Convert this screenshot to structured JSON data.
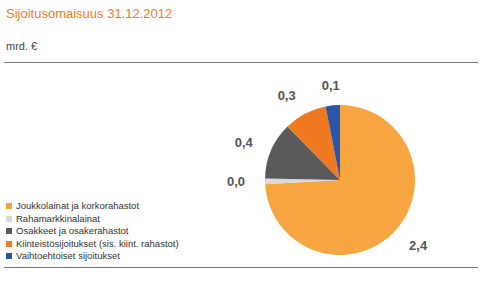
{
  "chart_data": {
    "type": "pie",
    "title": "Sijoitusomaisuus 31.12.2012",
    "subtitle": "mrd. €",
    "categories": [
      "Joukkolainat ja korkorahastot",
      "Rahamarkkinalainat",
      "Osakkeet ja osakerahastot",
      "Kiinteistösijoitukset (sis. kiint. rahastot)",
      "Vaihtoehtoiset sijoitukset"
    ],
    "values": [
      2.4,
      0.04,
      0.4,
      0.3,
      0.1
    ],
    "value_labels": [
      "2,4",
      "0,0",
      "0,4",
      "0,3",
      "0,1"
    ],
    "colors": [
      "#F7A541",
      "#D9D9D9",
      "#5A5A5A",
      "#F07A22",
      "#2B55A5"
    ],
    "data_labels": true,
    "legend": "lower left"
  }
}
